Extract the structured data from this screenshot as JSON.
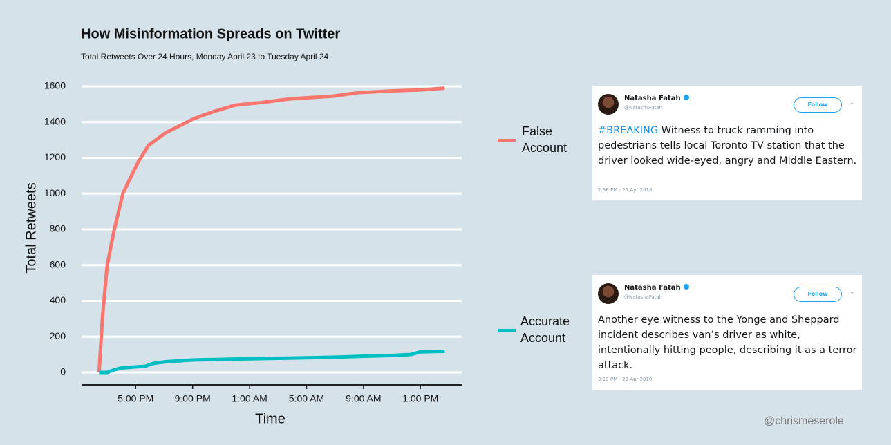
{
  "chart_data": {
    "type": "line",
    "title": "How Misinformation Spreads on Twitter",
    "subtitle": "Total Retweets Over 24 Hours, Monday April 23 to Tuesday April 24",
    "x_label": "Time",
    "y_label": "Total Retweets",
    "xlim": [
      13.2,
      39.9
    ],
    "xticks": [
      {
        "value": 17,
        "label": "5:00 PM"
      },
      {
        "value": 21,
        "label": "9:00 PM"
      },
      {
        "value": 25,
        "label": "1:00 AM"
      },
      {
        "value": 29,
        "label": "5:00 AM"
      },
      {
        "value": 33,
        "label": "9:00 AM"
      },
      {
        "value": 37,
        "label": "1:00 PM"
      }
    ],
    "ylim": [
      0,
      1600
    ],
    "yticks": [
      0,
      200,
      400,
      600,
      800,
      1000,
      1200,
      1400,
      1600
    ],
    "grid": true,
    "series": [
      {
        "name": "False Account",
        "color": "#f8766d",
        "x": [
          14.43,
          14.68,
          15.0,
          15.5,
          16.1,
          16.7,
          17.2,
          17.9,
          19.1,
          20.1,
          21.1,
          22.5,
          24.0,
          25.9,
          27.8,
          30.8,
          32.7,
          35.1,
          37.0,
          38.7
        ],
        "values": [
          0,
          320,
          600,
          800,
          1000,
          1100,
          1180,
          1270,
          1340,
          1380,
          1420,
          1460,
          1495,
          1510,
          1530,
          1545,
          1565,
          1575,
          1580,
          1590
        ]
      },
      {
        "name": "Accurate Account",
        "color": "#00bfc4",
        "x": [
          14.43,
          15.0,
          15.5,
          16.0,
          17.7,
          18.2,
          19.1,
          21.1,
          24.0,
          27.8,
          30.8,
          32.7,
          35.1,
          36.3,
          37.0,
          38.7
        ],
        "values": [
          0,
          0,
          15,
          25,
          35,
          50,
          60,
          70,
          75,
          80,
          85,
          90,
          95,
          100,
          115,
          118
        ]
      }
    ]
  },
  "tweets": [
    {
      "name": "Natasha Fatah",
      "handle": "@NatashaFatah",
      "button": "Follow",
      "hashtag": "#BREAKING",
      "text": "Witness to truck ramming into pedestrians tells local Toronto TV station that the driver looked wide-eyed, angry and Middle Eastern.",
      "time": "2:36 PM - 23 Apr 2018"
    },
    {
      "name": "Natasha Fatah",
      "handle": "@NatashaFatah",
      "button": "Follow",
      "text": "Another eye witness to the Yonge and Sheppard incident describes van’s driver as white, intentionally hitting people, describing it as a terror attack.",
      "time": "3:19 PM - 23 Apr 2018"
    }
  ],
  "credit": "@chrismeserole"
}
